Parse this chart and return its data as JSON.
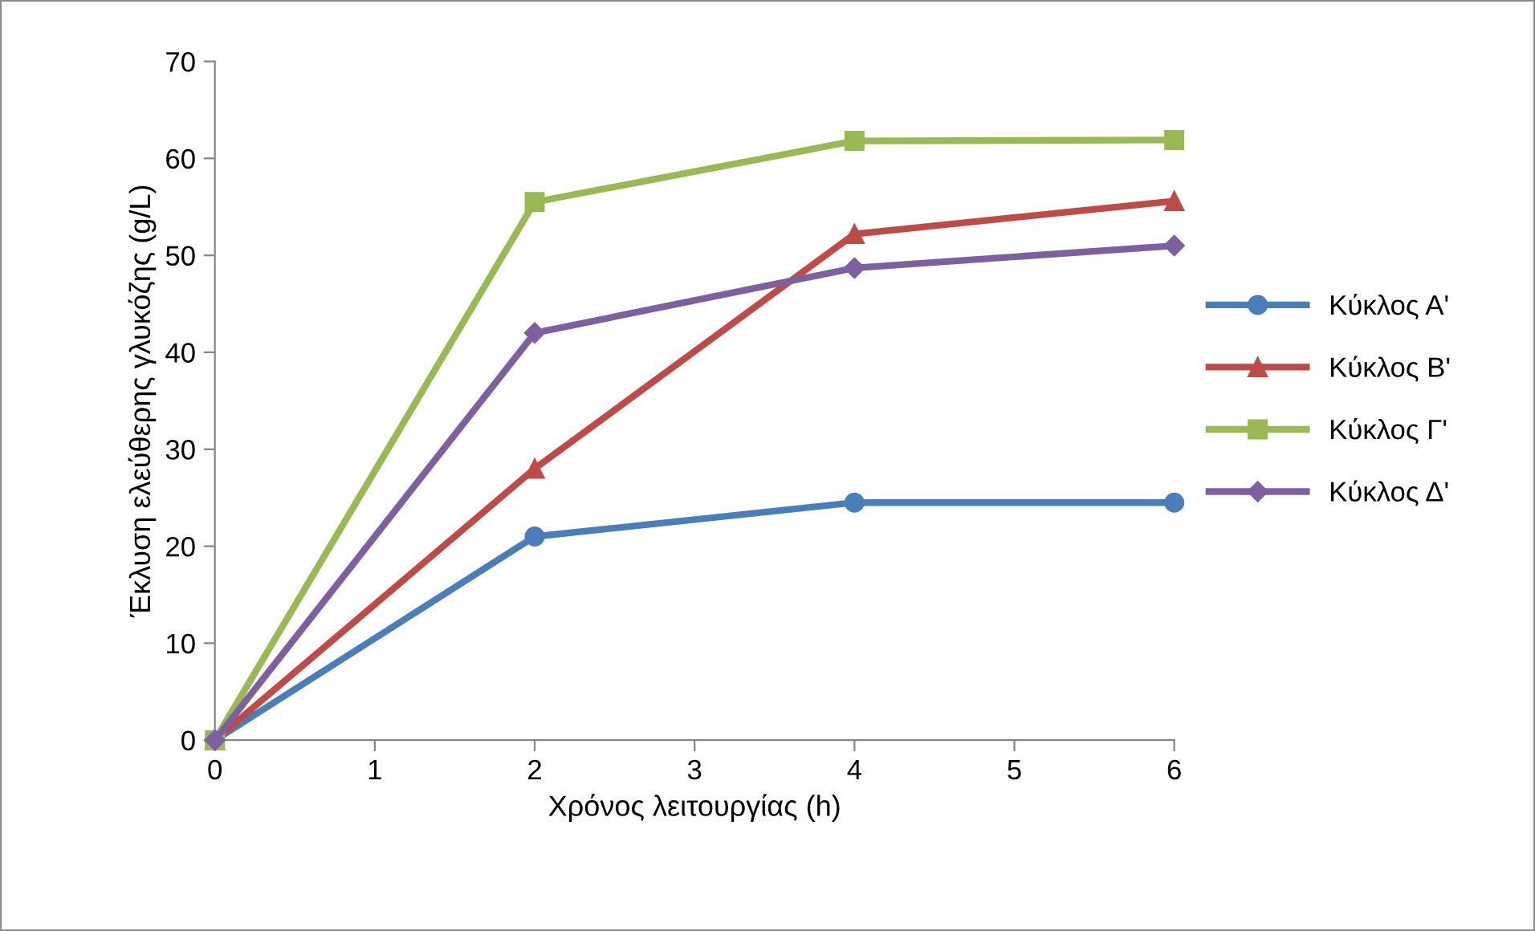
{
  "chart_data": {
    "type": "line",
    "xlabel": "Χρόνος λειτουργίας (h)",
    "ylabel": "Έκλυση ελεύθερης γλυκόζης (g/L)",
    "x": [
      0,
      2,
      4,
      6
    ],
    "xlim": [
      0,
      6
    ],
    "xticks": [
      0,
      1,
      2,
      3,
      4,
      5,
      6
    ],
    "ylim": [
      0,
      70
    ],
    "yticks": [
      0,
      10,
      20,
      30,
      40,
      50,
      60,
      70
    ],
    "grid": false,
    "legend": "right",
    "line_style": "solid",
    "series": [
      {
        "name": "Κύκλος Α'",
        "color": "#4a7ebb",
        "marker": "circle",
        "values": [
          0,
          21,
          24.5,
          24.5
        ]
      },
      {
        "name": "Κύκλος Β'",
        "color": "#be4b48",
        "marker": "triangle",
        "values": [
          0,
          28,
          52.2,
          55.6
        ]
      },
      {
        "name": "Κύκλος Γ'",
        "color": "#98b954",
        "marker": "square",
        "values": [
          0,
          55.5,
          61.8,
          61.9
        ]
      },
      {
        "name": "Κύκλος Δ'",
        "color": "#7d60a0",
        "marker": "diamond",
        "values": [
          0,
          42,
          48.7,
          51
        ]
      }
    ]
  }
}
